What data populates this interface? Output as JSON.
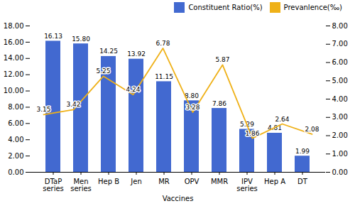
{
  "chart_data": {
    "type": "bar",
    "categories": [
      "DTaP\nseries",
      "Men\nseries",
      "Hep B",
      "Jen",
      "MR",
      "OPV",
      "MMR",
      "IPV\nseries",
      "Hep A",
      "DT"
    ],
    "xlabel": "Vaccines",
    "ylim": [
      0,
      18.0
    ],
    "yticks": [
      {
        "value": 0.0,
        "label": "0.00"
      },
      {
        "value": 2.0,
        "label": "2.00"
      },
      {
        "value": 4.0,
        "label": "4.00"
      },
      {
        "value": 6.0,
        "label": "6.00"
      },
      {
        "value": 8.0,
        "label": "8.00"
      },
      {
        "value": 10.0,
        "label": "10.00"
      },
      {
        "value": 12.0,
        "label": "12.00"
      },
      {
        "value": 14.0,
        "label": "14.00"
      },
      {
        "value": 16.0,
        "label": "16.00"
      },
      {
        "value": 18.0,
        "label": "18.00"
      }
    ],
    "y2lim": [
      0,
      8.0
    ],
    "y2ticks": [
      {
        "value": 0.0,
        "label": "0.00"
      },
      {
        "value": 1.0,
        "label": "1.00"
      },
      {
        "value": 2.0,
        "label": "2.00"
      },
      {
        "value": 3.0,
        "label": "3.00"
      },
      {
        "value": 4.0,
        "label": "4.00"
      },
      {
        "value": 5.0,
        "label": "5.00"
      },
      {
        "value": 6.0,
        "label": "6.00"
      },
      {
        "value": 7.0,
        "label": "7.00"
      },
      {
        "value": 8.0,
        "label": "8.00"
      }
    ],
    "legend": "upper right",
    "data_labels": true,
    "series": [
      {
        "name": "Constituent Ratio(%)",
        "type": "bar",
        "values": [
          16.13,
          15.8,
          14.25,
          13.92,
          11.15,
          8.8,
          7.86,
          5.29,
          4.81,
          1.99
        ],
        "value_labels": [
          "16.13",
          "15.80",
          "14.25",
          "13.92",
          "11.15",
          "8.80",
          "7.86",
          "5.29",
          "4.81",
          "1.99"
        ]
      },
      {
        "name": "Prevanlence(‰)",
        "type": "line",
        "axis": "y2",
        "values": [
          3.15,
          3.42,
          5.25,
          4.24,
          6.78,
          3.28,
          5.87,
          1.86,
          2.64,
          2.08
        ],
        "value_labels": [
          "3.15",
          "3.42",
          "5.25",
          "4.24",
          "6.78",
          "3.28",
          "5.87",
          "1.86",
          "2.64",
          "2.08"
        ]
      }
    ]
  }
}
